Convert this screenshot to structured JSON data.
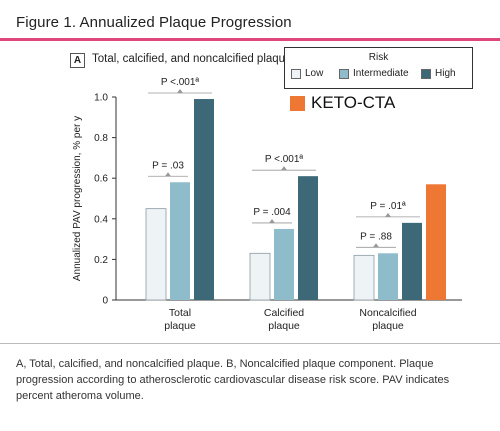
{
  "figure": {
    "title": "Figure 1. Annualized Plaque Progression",
    "panel_letter": "A",
    "panel_title": "Total, calcified, and noncalcified plaque",
    "caption": "A, Total, calcified, and noncalcified plaque. B, Noncalcified plaque component. Plaque progression according to atherosclerotic cardiovascular disease risk score. PAV indicates percent atheroma volume."
  },
  "legend": {
    "title": "Risk",
    "items": [
      {
        "label": "Low",
        "color": "#eef3f5"
      },
      {
        "label": "Intermediate",
        "color": "#8fbccb"
      },
      {
        "label": "High",
        "color": "#3c6878"
      }
    ],
    "extra": {
      "label": "KETO-CTA",
      "color": "#ee7733"
    }
  },
  "chart_data": {
    "type": "bar",
    "ylabel": "Annualized PAV progression, % per y",
    "ylim": [
      0,
      1.0
    ],
    "yticks": [
      "0",
      "0.2",
      "0.4",
      "0.6",
      "0.8",
      "1.0"
    ],
    "categories": [
      "Total\nplaque",
      "Calcified\nplaque",
      "Noncalcified\nplaque"
    ],
    "series": [
      {
        "name": "Low",
        "color": "#eef3f5",
        "values": [
          0.45,
          0.23,
          0.22
        ]
      },
      {
        "name": "Intermediate",
        "color": "#8fbccb",
        "values": [
          0.58,
          0.35,
          0.23
        ]
      },
      {
        "name": "High",
        "color": "#3c6878",
        "values": [
          0.99,
          0.61,
          0.38
        ]
      },
      {
        "name": "KETO-CTA",
        "color": "#ee7733",
        "values": [
          null,
          null,
          0.57
        ]
      }
    ],
    "annotations": [
      {
        "text": "P = .03",
        "group": 0,
        "from": 0,
        "to": 1
      },
      {
        "text": "P <.001ª",
        "group": 0,
        "from": 0,
        "to": 2
      },
      {
        "text": "P = .004",
        "group": 1,
        "from": 0,
        "to": 1
      },
      {
        "text": "P <.001ª",
        "group": 1,
        "from": 0,
        "to": 2
      },
      {
        "text": "P = .88",
        "group": 2,
        "from": 0,
        "to": 1
      },
      {
        "text": "P = .01ª",
        "group": 2,
        "from": 0,
        "to": 2
      }
    ]
  }
}
